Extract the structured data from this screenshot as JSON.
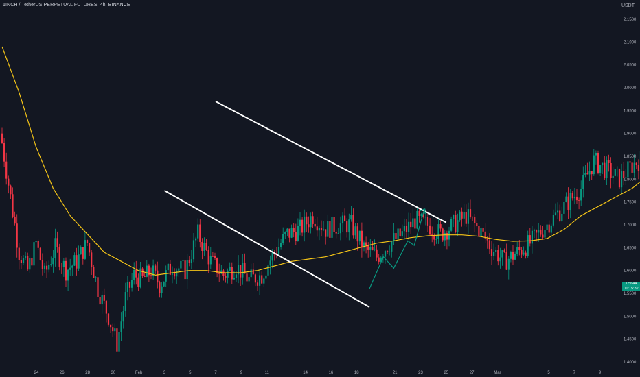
{
  "header": {
    "title": "1INCH / TetherUS PERPETUAL FUTURES, 4h, BINANCE",
    "unit": "USDT"
  },
  "last_price": {
    "value": "1.5644",
    "countdown": "01:15:32"
  },
  "colors": {
    "background": "#131722",
    "up": "#089981",
    "down": "#f23645",
    "ma": "#f5c518",
    "channel": "#ffffff",
    "projection": "#089981",
    "axis_text": "#b2b5be"
  },
  "chart_data": {
    "type": "candlestick",
    "title": "1INCH / TetherUS PERPETUAL FUTURES, 4h, BINANCE",
    "ylabel": "USDT",
    "ylim": [
      1.39,
      2.2
    ],
    "y_ticks": [
      "2.1500",
      "2.1000",
      "2.0500",
      "2.0000",
      "1.9500",
      "1.9000",
      "1.8500",
      "1.8000",
      "1.7500",
      "1.7000",
      "1.6500",
      "1.6000",
      "1.5500",
      "1.5000",
      "1.4500",
      "1.4000"
    ],
    "x_ticks": [
      "24",
      "26",
      "28",
      "30",
      "Feb",
      "3",
      "5",
      "7",
      "9",
      "11",
      "14",
      "16",
      "18",
      "21",
      "23",
      "25",
      "27",
      "Mar",
      "5",
      "7",
      "9"
    ],
    "price_path": [
      [
        0,
        1.88
      ],
      [
        4,
        1.76
      ],
      [
        8,
        1.64
      ],
      [
        12,
        1.6
      ],
      [
        16,
        1.66
      ],
      [
        20,
        1.59
      ],
      [
        25,
        1.65
      ],
      [
        30,
        1.6
      ],
      [
        35,
        1.62
      ],
      [
        40,
        1.66
      ],
      [
        45,
        1.56
      ],
      [
        50,
        1.5
      ],
      [
        54,
        1.44
      ],
      [
        58,
        1.54
      ],
      [
        62,
        1.59
      ],
      [
        66,
        1.58
      ],
      [
        70,
        1.6
      ],
      [
        74,
        1.57
      ],
      [
        80,
        1.61
      ],
      [
        86,
        1.6
      ],
      [
        92,
        1.68
      ],
      [
        98,
        1.62
      ],
      [
        104,
        1.59
      ],
      [
        110,
        1.61
      ],
      [
        116,
        1.58
      ],
      [
        122,
        1.59
      ],
      [
        128,
        1.64
      ],
      [
        134,
        1.68
      ],
      [
        140,
        1.69
      ],
      [
        146,
        1.72
      ],
      [
        152,
        1.69
      ],
      [
        158,
        1.7
      ],
      [
        164,
        1.7
      ],
      [
        170,
        1.65
      ],
      [
        176,
        1.63
      ],
      [
        182,
        1.66
      ],
      [
        188,
        1.68
      ],
      [
        194,
        1.71
      ],
      [
        200,
        1.7
      ],
      [
        206,
        1.68
      ],
      [
        212,
        1.7
      ],
      [
        218,
        1.72
      ],
      [
        224,
        1.69
      ],
      [
        230,
        1.65
      ],
      [
        236,
        1.62
      ],
      [
        242,
        1.64
      ],
      [
        248,
        1.66
      ],
      [
        254,
        1.69
      ],
      [
        260,
        1.72
      ],
      [
        266,
        1.75
      ],
      [
        272,
        1.78
      ],
      [
        278,
        1.84
      ],
      [
        284,
        1.82
      ],
      [
        290,
        1.8
      ],
      [
        296,
        1.83
      ],
      [
        302,
        1.85
      ],
      [
        308,
        1.87
      ],
      [
        314,
        1.91
      ],
      [
        320,
        1.95
      ],
      [
        326,
        1.96
      ],
      [
        330,
        1.93
      ],
      [
        334,
        1.86
      ],
      [
        338,
        1.82
      ],
      [
        344,
        1.84
      ],
      [
        350,
        1.87
      ],
      [
        356,
        1.9
      ],
      [
        362,
        1.92
      ],
      [
        368,
        1.93
      ],
      [
        374,
        1.89
      ],
      [
        380,
        1.83
      ],
      [
        386,
        1.78
      ],
      [
        392,
        1.8
      ],
      [
        398,
        1.77
      ],
      [
        404,
        1.72
      ],
      [
        410,
        1.69
      ],
      [
        416,
        1.7
      ],
      [
        422,
        1.67
      ],
      [
        428,
        1.69
      ],
      [
        434,
        1.69
      ],
      [
        440,
        1.66
      ],
      [
        446,
        1.64
      ],
      [
        452,
        1.68
      ],
      [
        458,
        1.7
      ],
      [
        464,
        1.73
      ],
      [
        470,
        1.74
      ],
      [
        476,
        1.76
      ],
      [
        482,
        1.79
      ],
      [
        488,
        1.84
      ],
      [
        492,
        1.84
      ],
      [
        498,
        1.8
      ],
      [
        504,
        1.79
      ],
      [
        510,
        1.76
      ],
      [
        514,
        1.72
      ],
      [
        518,
        1.67
      ],
      [
        524,
        1.65
      ],
      [
        528,
        1.6
      ],
      [
        532,
        1.57
      ],
      [
        536,
        1.57
      ],
      [
        540,
        1.59
      ],
      [
        544,
        1.58
      ],
      [
        547,
        1.545
      ]
    ],
    "moving_average": [
      [
        0,
        2.09
      ],
      [
        8,
        1.99
      ],
      [
        16,
        1.87
      ],
      [
        24,
        1.78
      ],
      [
        32,
        1.72
      ],
      [
        40,
        1.68
      ],
      [
        48,
        1.64
      ],
      [
        56,
        1.62
      ],
      [
        64,
        1.6
      ],
      [
        72,
        1.59
      ],
      [
        80,
        1.595
      ],
      [
        88,
        1.6
      ],
      [
        96,
        1.6
      ],
      [
        104,
        1.595
      ],
      [
        112,
        1.595
      ],
      [
        120,
        1.6
      ],
      [
        128,
        1.61
      ],
      [
        136,
        1.62
      ],
      [
        144,
        1.625
      ],
      [
        152,
        1.63
      ],
      [
        160,
        1.64
      ],
      [
        168,
        1.65
      ],
      [
        176,
        1.66
      ],
      [
        184,
        1.665
      ],
      [
        192,
        1.672
      ],
      [
        200,
        1.676
      ],
      [
        208,
        1.678
      ],
      [
        216,
        1.678
      ],
      [
        224,
        1.675
      ],
      [
        232,
        1.668
      ],
      [
        240,
        1.664
      ],
      [
        248,
        1.665
      ],
      [
        256,
        1.67
      ],
      [
        264,
        1.69
      ],
      [
        272,
        1.72
      ],
      [
        280,
        1.74
      ],
      [
        288,
        1.76
      ],
      [
        296,
        1.78
      ],
      [
        304,
        1.81
      ],
      [
        312,
        1.835
      ],
      [
        320,
        1.855
      ],
      [
        328,
        1.86
      ],
      [
        336,
        1.86
      ],
      [
        344,
        1.862
      ],
      [
        352,
        1.87
      ],
      [
        360,
        1.885
      ],
      [
        368,
        1.895
      ],
      [
        376,
        1.885
      ],
      [
        384,
        1.86
      ],
      [
        392,
        1.83
      ],
      [
        400,
        1.8
      ],
      [
        408,
        1.77
      ],
      [
        416,
        1.74
      ],
      [
        424,
        1.72
      ],
      [
        432,
        1.705
      ],
      [
        440,
        1.695
      ],
      [
        448,
        1.69
      ],
      [
        456,
        1.693
      ],
      [
        464,
        1.705
      ],
      [
        472,
        1.72
      ],
      [
        480,
        1.735
      ],
      [
        488,
        1.748
      ],
      [
        496,
        1.755
      ],
      [
        504,
        1.758
      ],
      [
        512,
        1.752
      ],
      [
        520,
        1.738
      ],
      [
        528,
        1.722
      ],
      [
        536,
        1.71
      ],
      [
        544,
        1.698
      ],
      [
        548,
        1.692
      ]
    ],
    "channel_upper": [
      [
        7,
        1.97
      ],
      [
        25,
        1.705
      ]
    ],
    "channel_lower": [
      [
        3,
        1.775
      ],
      [
        19,
        1.52
      ]
    ],
    "projection_path": [
      [
        19,
        1.56
      ],
      [
        20.1,
        1.63
      ],
      [
        20.9,
        1.605
      ],
      [
        22,
        1.665
      ],
      [
        22.5,
        1.655
      ],
      [
        23.3,
        1.735
      ]
    ]
  }
}
